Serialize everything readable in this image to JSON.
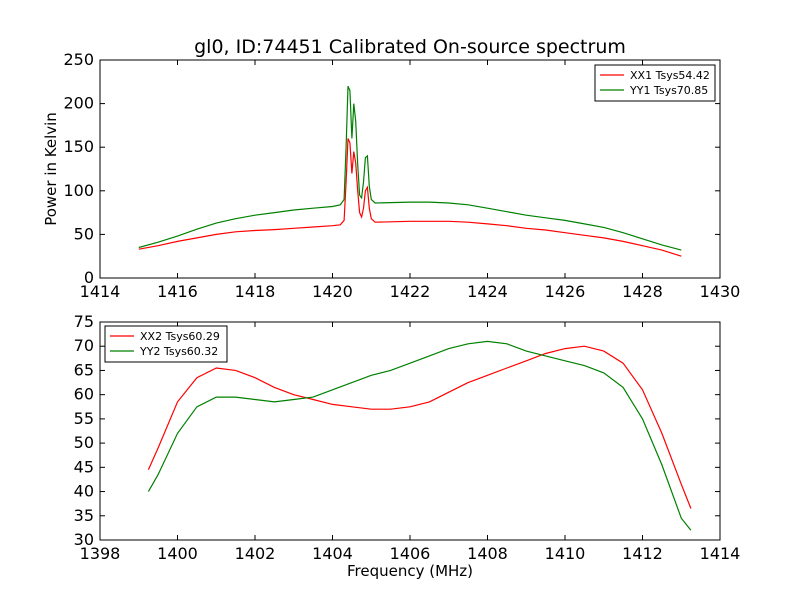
{
  "chart_data": {
    "type": "line",
    "title": "gl0, ID:74451 Calibrated On-source spectrum",
    "panels": [
      {
        "ylabel": "Power in Kelvin",
        "xlabel": "",
        "xlim": [
          1414,
          1430
        ],
        "ylim": [
          0,
          250
        ],
        "xticks": [
          "1414",
          "1416",
          "1418",
          "1420",
          "1422",
          "1424",
          "1426",
          "1428",
          "1430"
        ],
        "yticks": [
          "0",
          "50",
          "100",
          "150",
          "200",
          "250"
        ],
        "legend_position": "top-right",
        "series": [
          {
            "name": "XX1 Tsys54.42",
            "color": "#ff0000",
            "points": [
              [
                1415.0,
                33
              ],
              [
                1415.5,
                37
              ],
              [
                1416.0,
                42
              ],
              [
                1416.5,
                46
              ],
              [
                1417.0,
                50
              ],
              [
                1417.5,
                53
              ],
              [
                1418.0,
                54.5
              ],
              [
                1418.5,
                55.5
              ],
              [
                1419.0,
                57
              ],
              [
                1419.5,
                58.5
              ],
              [
                1420.0,
                60
              ],
              [
                1420.2,
                61
              ],
              [
                1420.3,
                66
              ],
              [
                1420.35,
                110
              ],
              [
                1420.4,
                160
              ],
              [
                1420.45,
                155
              ],
              [
                1420.5,
                120
              ],
              [
                1420.55,
                145
              ],
              [
                1420.6,
                132
              ],
              [
                1420.65,
                100
              ],
              [
                1420.7,
                75
              ],
              [
                1420.75,
                70
              ],
              [
                1420.8,
                80
              ],
              [
                1420.85,
                100
              ],
              [
                1420.9,
                104
              ],
              [
                1420.95,
                80
              ],
              [
                1421.0,
                68
              ],
              [
                1421.1,
                64
              ],
              [
                1421.5,
                64.5
              ],
              [
                1422.0,
                65
              ],
              [
                1422.5,
                65
              ],
              [
                1423.0,
                65
              ],
              [
                1423.5,
                64
              ],
              [
                1424.0,
                62
              ],
              [
                1424.5,
                60
              ],
              [
                1425.0,
                57
              ],
              [
                1425.5,
                55
              ],
              [
                1426.0,
                52
              ],
              [
                1426.5,
                49
              ],
              [
                1427.0,
                46
              ],
              [
                1427.5,
                42
              ],
              [
                1428.0,
                37
              ],
              [
                1428.5,
                32
              ],
              [
                1429.0,
                25
              ]
            ]
          },
          {
            "name": "YY1 Tsys70.85",
            "color": "#008000",
            "points": [
              [
                1415.0,
                35
              ],
              [
                1415.5,
                41
              ],
              [
                1416.0,
                48
              ],
              [
                1416.5,
                56
              ],
              [
                1417.0,
                63
              ],
              [
                1417.5,
                68
              ],
              [
                1418.0,
                72
              ],
              [
                1418.5,
                75
              ],
              [
                1419.0,
                78
              ],
              [
                1419.5,
                80
              ],
              [
                1420.0,
                82
              ],
              [
                1420.2,
                84
              ],
              [
                1420.3,
                90
              ],
              [
                1420.35,
                150
              ],
              [
                1420.4,
                220
              ],
              [
                1420.45,
                215
              ],
              [
                1420.5,
                160
              ],
              [
                1420.55,
                200
              ],
              [
                1420.6,
                180
              ],
              [
                1420.65,
                130
              ],
              [
                1420.7,
                95
              ],
              [
                1420.75,
                92
              ],
              [
                1420.8,
                110
              ],
              [
                1420.85,
                138
              ],
              [
                1420.9,
                140
              ],
              [
                1420.95,
                105
              ],
              [
                1421.0,
                90
              ],
              [
                1421.1,
                86
              ],
              [
                1421.5,
                86.5
              ],
              [
                1422.0,
                87
              ],
              [
                1422.5,
                87
              ],
              [
                1423.0,
                86
              ],
              [
                1423.5,
                84
              ],
              [
                1424.0,
                80
              ],
              [
                1424.5,
                76
              ],
              [
                1425.0,
                72
              ],
              [
                1425.5,
                69
              ],
              [
                1426.0,
                66
              ],
              [
                1426.5,
                62
              ],
              [
                1427.0,
                58
              ],
              [
                1427.5,
                52
              ],
              [
                1428.0,
                45
              ],
              [
                1428.5,
                38
              ],
              [
                1429.0,
                32
              ]
            ]
          }
        ]
      },
      {
        "ylabel": "",
        "xlabel": "Frequency (MHz)",
        "xlim": [
          1398,
          1414
        ],
        "ylim": [
          30,
          75
        ],
        "xticks": [
          "1398",
          "1400",
          "1402",
          "1404",
          "1406",
          "1408",
          "1410",
          "1412",
          "1414"
        ],
        "yticks": [
          "30",
          "35",
          "40",
          "45",
          "50",
          "55",
          "60",
          "65",
          "70",
          "75"
        ],
        "legend_position": "top-left",
        "series": [
          {
            "name": "XX2 Tsys60.29",
            "color": "#ff0000",
            "points": [
              [
                1399.25,
                44.5
              ],
              [
                1399.5,
                49
              ],
              [
                1400.0,
                58.5
              ],
              [
                1400.5,
                63.5
              ],
              [
                1401.0,
                65.5
              ],
              [
                1401.5,
                65
              ],
              [
                1402.0,
                63.5
              ],
              [
                1402.5,
                61.5
              ],
              [
                1403.0,
                60
              ],
              [
                1403.5,
                59
              ],
              [
                1404.0,
                58
              ],
              [
                1404.5,
                57.5
              ],
              [
                1405.0,
                57
              ],
              [
                1405.5,
                57
              ],
              [
                1406.0,
                57.5
              ],
              [
                1406.5,
                58.5
              ],
              [
                1407.0,
                60.5
              ],
              [
                1407.5,
                62.5
              ],
              [
                1408.0,
                64
              ],
              [
                1408.5,
                65.5
              ],
              [
                1409.0,
                67
              ],
              [
                1409.5,
                68.5
              ],
              [
                1410.0,
                69.5
              ],
              [
                1410.5,
                70
              ],
              [
                1411.0,
                69
              ],
              [
                1411.5,
                66.5
              ],
              [
                1412.0,
                61
              ],
              [
                1412.5,
                52
              ],
              [
                1413.0,
                41.5
              ],
              [
                1413.25,
                36.5
              ]
            ]
          },
          {
            "name": "YY2 Tsys60.32",
            "color": "#008000",
            "points": [
              [
                1399.25,
                40
              ],
              [
                1399.5,
                43.5
              ],
              [
                1400.0,
                52
              ],
              [
                1400.5,
                57.5
              ],
              [
                1401.0,
                59.5
              ],
              [
                1401.5,
                59.5
              ],
              [
                1402.0,
                59
              ],
              [
                1402.5,
                58.5
              ],
              [
                1403.0,
                59
              ],
              [
                1403.5,
                59.5
              ],
              [
                1404.0,
                61
              ],
              [
                1404.5,
                62.5
              ],
              [
                1405.0,
                64
              ],
              [
                1405.5,
                65
              ],
              [
                1406.0,
                66.5
              ],
              [
                1406.5,
                68
              ],
              [
                1407.0,
                69.5
              ],
              [
                1407.5,
                70.5
              ],
              [
                1408.0,
                71
              ],
              [
                1408.5,
                70.5
              ],
              [
                1409.0,
                69
              ],
              [
                1409.5,
                68
              ],
              [
                1410.0,
                67
              ],
              [
                1410.5,
                66
              ],
              [
                1411.0,
                64.5
              ],
              [
                1411.5,
                61.5
              ],
              [
                1412.0,
                55
              ],
              [
                1412.5,
                45.5
              ],
              [
                1413.0,
                34.5
              ],
              [
                1413.25,
                32
              ]
            ]
          }
        ]
      }
    ]
  }
}
